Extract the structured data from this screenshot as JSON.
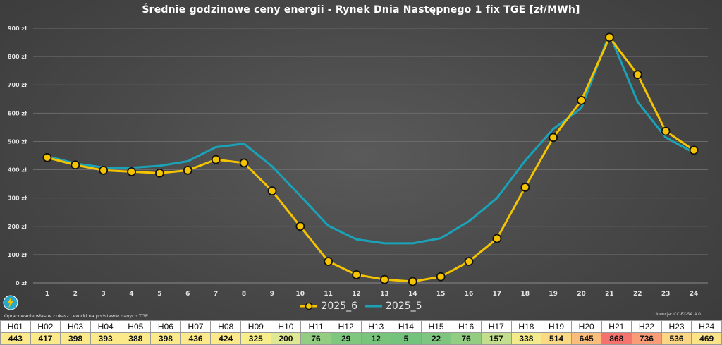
{
  "chart_data": {
    "type": "line",
    "title": "Średnie godzinowe ceny energii - Rynek Dnia Następnego 1 fix TGE [zł/MWh]",
    "x": [
      1,
      2,
      3,
      4,
      5,
      6,
      7,
      8,
      9,
      10,
      11,
      12,
      13,
      14,
      15,
      16,
      17,
      18,
      19,
      20,
      21,
      22,
      23,
      24
    ],
    "x_tick_labels": [
      "1",
      "2",
      "3",
      "4",
      "5",
      "6",
      "7",
      "8",
      "9",
      "10",
      "11",
      "12",
      "13",
      "14",
      "15",
      "16",
      "17",
      "18",
      "19",
      "20",
      "21",
      "22",
      "23",
      "24"
    ],
    "ylim": [
      0,
      900
    ],
    "y_ticks": [
      0,
      100,
      200,
      300,
      400,
      500,
      600,
      700,
      800,
      900
    ],
    "y_tick_labels": [
      "0 zł",
      "100 zł",
      "200 zł",
      "300 zł",
      "400 zł",
      "500 zł",
      "600 zł",
      "700 zł",
      "800 zł",
      "900 zł"
    ],
    "grid": true,
    "legend_position": "bottom-center",
    "series": [
      {
        "name": "2025_6",
        "color": "#f5c400",
        "marker": "circle",
        "values": [
          443,
          417,
          398,
          393,
          388,
          398,
          436,
          424,
          325,
          200,
          76,
          29,
          12,
          5,
          22,
          76,
          157,
          338,
          514,
          645,
          868,
          736,
          536,
          469
        ]
      },
      {
        "name": "2025_5",
        "color": "#1aa3b8",
        "marker": "none",
        "values": [
          448,
          422,
          408,
          407,
          414,
          430,
          480,
          492,
          412,
          308,
          202,
          154,
          140,
          140,
          158,
          218,
          300,
          432,
          544,
          618,
          880,
          640,
          514,
          460
        ]
      }
    ]
  },
  "footer": {
    "credit": "Opracowanie własne Łukasz Lewicki na podstawie danych TGE",
    "license": "Licencja: CC-BY-SA 4.0"
  },
  "hour_table": {
    "headers": [
      "H01",
      "H02",
      "H03",
      "H04",
      "H05",
      "H06",
      "H07",
      "H08",
      "H09",
      "H10",
      "H11",
      "H12",
      "H13",
      "H14",
      "H15",
      "H16",
      "H17",
      "H18",
      "H19",
      "H20",
      "H21",
      "H22",
      "H23",
      "H24"
    ],
    "values": [
      "443",
      "417",
      "398",
      "393",
      "388",
      "398",
      "436",
      "424",
      "325",
      "200",
      "76",
      "29",
      "12",
      "5",
      "22",
      "76",
      "157",
      "338",
      "514",
      "645",
      "868",
      "736",
      "536",
      "469"
    ],
    "colors": [
      "#fbe98a",
      "#fbe98a",
      "#fbe98a",
      "#fbe98a",
      "#fbe98a",
      "#fbe98a",
      "#fbe98a",
      "#fbe98a",
      "#f8ef8c",
      "#dfe893",
      "#92cd82",
      "#7fc77f",
      "#78c47c",
      "#74c37c",
      "#7ec67f",
      "#92cd82",
      "#c3df8d",
      "#f3ea8b",
      "#fbd985",
      "#fbbd7c",
      "#f4736e",
      "#f89d77",
      "#fbd684",
      "#fbe38a"
    ]
  }
}
